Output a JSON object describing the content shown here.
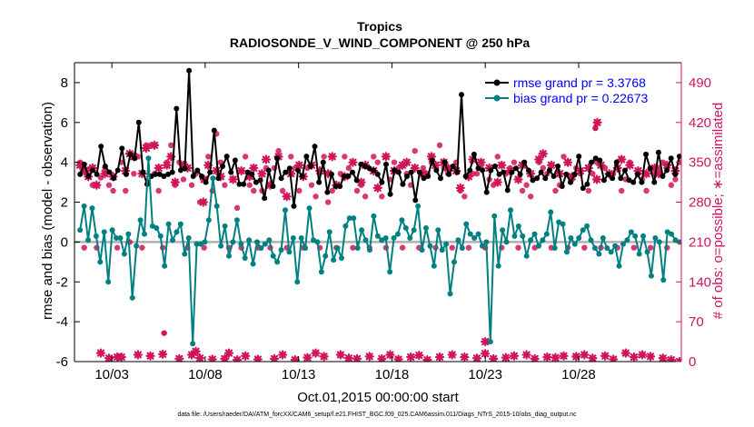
{
  "chart_data": {
    "type": "line",
    "title": "Tropics",
    "subtitle": "RADIOSONDE_V_WIND_COMPONENT @ 250 hPa",
    "xlabel": "Oct.01,2015 00:00:00 start",
    "ylabel_left": "rmse and bias (model - observation)",
    "ylabel_right": "# of obs: o=possible; ∗=assimilated",
    "footnote": "data file: /Users/raeder/DAI/ATM_forcXX/CAM6_setup/f.e21.FHIST_BGC.f09_025.CAM6assim.011/Diags_NTrS_2015-10/obs_diag_output.nc",
    "x_range": [
      0,
      32.5
    ],
    "ylim_left": [
      -6,
      9
    ],
    "ylim_right": [
      0,
      525
    ],
    "x_ticks": [
      {
        "x": 2,
        "label": "10/03"
      },
      {
        "x": 7,
        "label": "10/08"
      },
      {
        "x": 12,
        "label": "10/13"
      },
      {
        "x": 17,
        "label": "10/18"
      },
      {
        "x": 22,
        "label": "10/23"
      },
      {
        "x": 27,
        "label": "10/28"
      }
    ],
    "y_ticks_left": [
      "-6",
      "-4",
      "-2",
      "0",
      "2",
      "4",
      "6",
      "8"
    ],
    "y_ticks_right": [
      "0",
      "70",
      "140",
      "210",
      "280",
      "350",
      "420",
      "490"
    ],
    "series": [
      {
        "name": "rmse grand pr = 3.3768",
        "color": "#000000",
        "marker": "circle",
        "axis": "left",
        "values": [
          3.4,
          3.9,
          3.3,
          3.6,
          3.4,
          4.8,
          3.8,
          3.5,
          3.2,
          3.6,
          4.7,
          3.4,
          4.4,
          4.2,
          6.0,
          3.5,
          2.9,
          3.3,
          3.4,
          3.4,
          3.3,
          3.4,
          3.5,
          6.7,
          3.6,
          3.7,
          8.6,
          3.3,
          3.6,
          3.3,
          3.0,
          3.5,
          5.6,
          3.2,
          3.8,
          4.3,
          3.5,
          4.1,
          2.9,
          2.9,
          3.5,
          3.4,
          3.0,
          3.1,
          2.2,
          3.6,
          2.8,
          4.2,
          3.2,
          3.5,
          3.7,
          1.8,
          3.6,
          3.3,
          4.3,
          3.8,
          4.8,
          3.0,
          4.0,
          2.5,
          3.4,
          2.8,
          2.8,
          3.3,
          3.3,
          3.5,
          3.1,
          3.9,
          3.8,
          3.7,
          3.6,
          3.4,
          3.0,
          3.9,
          2.4,
          3.6,
          3.5,
          2.9,
          3.3,
          3.5,
          2.1,
          3.5,
          3.2,
          3.3,
          4.1,
          3.6,
          3.2,
          4.0,
          3.4,
          3.8,
          3.5,
          7.4,
          3.3,
          3.6,
          4.4,
          3.7,
          3.6,
          2.5,
          3.6,
          3.8,
          3.4,
          3.5,
          2.6,
          3.5,
          3.7,
          3.4,
          4.0,
          3.6,
          3.1,
          3.2,
          3.5,
          3.2,
          3.6,
          3.3,
          3.8,
          2.8,
          3.4,
          3.0,
          3.4,
          4.3,
          2.7,
          2.9,
          4.0,
          4.2,
          4.1,
          3.1,
          3.4,
          3.2,
          4.0,
          3.2,
          3.6,
          3.1,
          3.0,
          3.4,
          3.0,
          4.4,
          3.7,
          3.0,
          4.5,
          3.3,
          3.6,
          4.2,
          3.4,
          4.3
        ]
      },
      {
        "name": "bias grand pr = 0.22673",
        "color": "#008080",
        "marker": "circle",
        "axis": "left",
        "values": [
          0.6,
          1.8,
          0.1,
          1.7,
          0.3,
          -1.0,
          0.5,
          -2.0,
          0.6,
          0.2,
          0.2,
          -0.6,
          0.4,
          -2.8,
          -0.2,
          1.1,
          0.4,
          4.2,
          0.8,
          0.7,
          0.3,
          -1.2,
          0.9,
          0.1,
          0.5,
          0.9,
          -0.6,
          0.2,
          -5.1,
          -0.1,
          -0.1,
          0.0,
          1.1,
          3.2,
          1.8,
          -0.2,
          0.8,
          -0.7,
          0.0,
          1.1,
          -0.1,
          -0.8,
          0.1,
          -1.1,
          0.0,
          -0.3,
          -0.1,
          0.1,
          -0.7,
          -1.0,
          -0.4,
          1.6,
          -0.5,
          0.2,
          -2.0,
          0.2,
          -0.3,
          1.7,
          0.1,
          0.0,
          -1.5,
          -0.7,
          0.5,
          -0.9,
          -0.3,
          -0.8,
          0.8,
          1.2,
          1.2,
          -0.3,
          0.6,
          0.1,
          -0.4,
          1.3,
          0.3,
          0.1,
          0.2,
          -1.5,
          0.2,
          0.4,
          1.1,
          0.7,
          0.2,
          0.6,
          1.8,
          -0.4,
          0.7,
          -0.2,
          -1.2,
          0.6,
          -0.4,
          -0.1,
          -2.6,
          -1.0,
          0.1,
          -0.3,
          0.9,
          0.4,
          0.2,
          0.4,
          -0.2,
          0.0,
          -5.0,
          1.3,
          -1.2,
          0.6,
          0.0,
          1.6,
          0.3,
          0.8,
          0.3,
          -0.7,
          0.1,
          0.4,
          -0.2,
          0.1,
          0.4,
          1.5,
          -0.3,
          1.0,
          0.9,
          -0.5,
          0.2,
          -0.1,
          0.2,
          0.6,
          0.8,
          0.1,
          -0.3,
          -0.6,
          0.2,
          -0.3,
          -0.5,
          -0.2,
          -1.2,
          -0.1,
          0.1,
          0.5,
          0.3,
          -0.6,
          0.3,
          -0.5,
          -1.7,
          0.2,
          0.0,
          -1.9,
          0.5,
          0.4,
          0.1,
          0.0
        ]
      },
      {
        "name": "# obs possible",
        "color": "#d0145a",
        "marker": "circle",
        "axis": "right",
        "values": [
          350,
          200,
          338,
          310,
          200,
          323,
          340,
          310,
          300,
          200,
          350,
          300,
          210,
          330,
          360,
          200,
          380,
          380,
          330,
          300,
          200,
          350,
          380,
          310,
          350,
          320,
          200,
          310,
          330,
          280,
          200,
          360,
          300,
          400,
          350,
          310,
          200,
          320,
          270,
          200,
          360,
          310,
          300,
          200,
          300,
          340,
          200,
          340,
          370,
          300,
          200,
          360,
          340,
          300,
          200,
          340,
          310,
          290,
          200,
          360,
          280,
          300,
          200,
          330,
          360,
          340,
          200,
          300,
          310,
          290,
          200,
          360,
          350,
          290,
          200,
          320,
          350,
          340,
          200,
          330,
          310,
          370,
          200,
          340,
          330,
          350,
          200,
          380,
          340,
          330,
          200,
          350,
          300,
          290,
          200,
          330,
          330,
          340,
          200,
          320,
          310,
          360,
          200,
          330,
          340,
          350,
          200,
          300,
          310,
          290,
          200,
          350,
          340,
          330,
          200,
          300,
          310,
          360,
          200,
          320,
          340,
          330,
          200,
          300,
          330,
          350,
          200,
          340,
          330,
          330,
          200,
          300,
          320,
          350,
          200,
          330,
          320,
          300,
          200,
          330,
          340,
          350,
          200,
          310,
          320,
          350
        ]
      },
      {
        "name": "# obs assimilated",
        "color": "#d0145a",
        "marker": "asterisk",
        "axis": "right",
        "values": [
          345,
          335,
          325,
          340,
          310,
          15,
          330,
          6,
          325,
          8,
          8,
          335,
          365,
          360,
          12,
          330,
          375,
          10,
          380,
          340,
          13,
          345,
          360,
          315,
          5,
          345,
          340,
          12,
          18,
          6,
          320,
          345,
          4,
          335,
          325,
          5,
          15,
          320,
          3,
          335,
          10,
          325,
          340,
          4,
          330,
          355,
          310,
          5,
          360,
          12,
          290,
          330,
          3,
          345,
          325,
          7,
          345,
          15,
          335,
          9,
          330,
          360,
          310,
          12,
          325,
          6,
          350,
          5,
          315,
          345,
          9,
          335,
          305,
          5,
          360,
          12,
          335,
          4,
          345,
          350,
          8,
          340,
          11,
          330,
          3,
          360,
          345,
          8,
          350,
          340,
          12,
          335,
          305,
          8,
          325,
          355,
          6,
          350,
          14,
          340,
          5,
          315,
          345,
          7,
          335,
          10,
          320,
          345,
          12,
          330,
          5,
          355,
          365,
          8,
          345,
          7,
          330,
          10,
          350,
          325,
          9,
          335,
          12,
          340,
          6,
          320,
          345,
          10,
          330,
          4,
          340,
          355,
          15,
          345,
          8,
          335,
          12,
          330,
          9,
          340,
          330,
          6,
          345,
          3,
          335,
          0
        ]
      }
    ],
    "highlight_points": [
      {
        "series": "# obs possible",
        "x": 4.8,
        "y": 50
      },
      {
        "series": "# obs possible",
        "x": 27.9,
        "y": 410
      },
      {
        "series": "# obs assimilated",
        "x": 28.0,
        "y": 420
      },
      {
        "series": "# obs assimilated",
        "x": 22.0,
        "y": 35
      },
      {
        "series": "# obs assimilated",
        "x": 6.9,
        "y": 280
      }
    ],
    "zero_line": {
      "y": 0,
      "color": "#b0b0b0"
    }
  },
  "colors": {
    "left_axis": "#000000",
    "right_axis": "#d0145a",
    "legend_text": "#0000ff",
    "rmse": "#000000",
    "bias": "#008080",
    "obs": "#d0145a"
  }
}
